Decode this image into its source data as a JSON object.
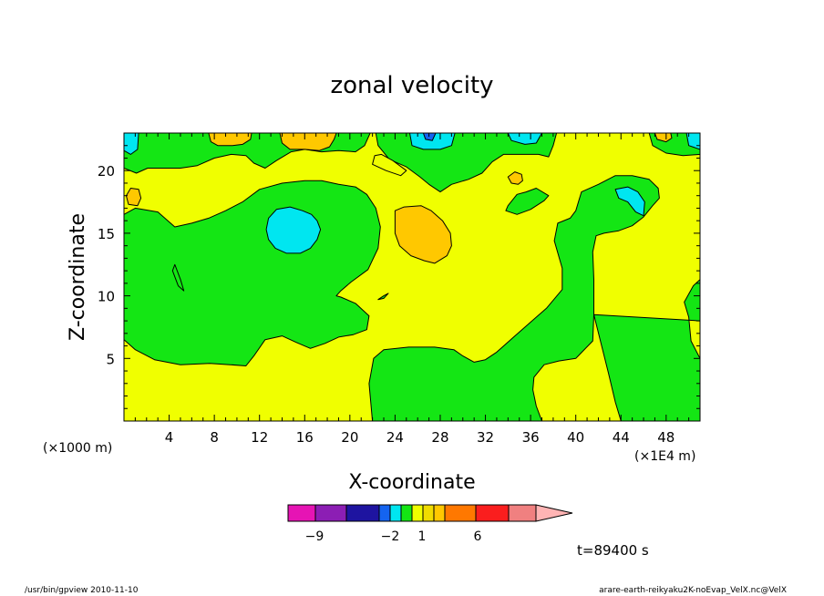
{
  "chart_data": {
    "type": "heatmap",
    "title": "zonal velocity",
    "xlabel": "X-coordinate",
    "ylabel": "Z-coordinate",
    "x_scale_note": "(×1000 m)",
    "x_unit_note": "(×1E4 m)",
    "xlim": [
      0,
      51
    ],
    "ylim": [
      0,
      23
    ],
    "x_ticks": [
      4,
      8,
      12,
      16,
      20,
      24,
      28,
      32,
      36,
      40,
      44,
      48
    ],
    "x_tick_labels": [
      "4",
      "8",
      "12",
      "16",
      "20",
      "24",
      "28",
      "32",
      "36",
      "40",
      "44",
      "48"
    ],
    "y_ticks": [
      5,
      10,
      15,
      20
    ],
    "y_tick_labels": [
      "5",
      "10",
      "15",
      "20"
    ],
    "regions": [
      {
        "level": "green",
        "polygon": [
          [
            0,
            16.5
          ],
          [
            1,
            17
          ],
          [
            3,
            16.7
          ],
          [
            4.5,
            15.5
          ],
          [
            6,
            15.8
          ],
          [
            7.5,
            16.2
          ],
          [
            9,
            16.8
          ],
          [
            10.5,
            17.5
          ],
          [
            12,
            18.5
          ],
          [
            14,
            19
          ],
          [
            16,
            19.2
          ],
          [
            17.5,
            19.2
          ],
          [
            19,
            18.9
          ],
          [
            20.5,
            18.7
          ],
          [
            21.5,
            18.1
          ],
          [
            22.3,
            17
          ],
          [
            22.7,
            15.5
          ],
          [
            22.5,
            13.8
          ],
          [
            21.6,
            12.1
          ],
          [
            20.1,
            11.1
          ],
          [
            19.2,
            10.4
          ],
          [
            18.8,
            10
          ],
          [
            19.2,
            9.9
          ],
          [
            20.5,
            9.4
          ],
          [
            21.7,
            8.4
          ],
          [
            21.5,
            7.3
          ],
          [
            20.3,
            6.9
          ],
          [
            19,
            6.7
          ],
          [
            17.8,
            6.2
          ],
          [
            16.5,
            5.8
          ],
          [
            15.2,
            6.3
          ],
          [
            14,
            6.8
          ],
          [
            12.5,
            6.5
          ],
          [
            11.5,
            5.2
          ],
          [
            10.8,
            4.4
          ],
          [
            9.4,
            4.5
          ],
          [
            7.6,
            4.6
          ],
          [
            5,
            4.5
          ],
          [
            2.7,
            4.9
          ],
          [
            1,
            5.7
          ],
          [
            0,
            6.5
          ]
        ]
      },
      {
        "level": "green",
        "polygon": [
          [
            22,
            0
          ],
          [
            21.7,
            3
          ],
          [
            22.1,
            5
          ],
          [
            23,
            5.7
          ],
          [
            25.2,
            5.9
          ],
          [
            27.5,
            5.9
          ],
          [
            29.2,
            5.7
          ],
          [
            30,
            5.2
          ],
          [
            31,
            4.7
          ],
          [
            32,
            4.9
          ],
          [
            33,
            5.5
          ],
          [
            34.5,
            6.7
          ],
          [
            36,
            7.9
          ],
          [
            37.4,
            9
          ],
          [
            38.8,
            10.5
          ],
          [
            38.8,
            12.2
          ],
          [
            38.1,
            14.4
          ],
          [
            38.4,
            15.8
          ],
          [
            39.5,
            16.2
          ],
          [
            40,
            16.8
          ],
          [
            40.5,
            18.3
          ],
          [
            42,
            18.9
          ],
          [
            43.5,
            19.6
          ],
          [
            45,
            19.6
          ],
          [
            46.5,
            19.3
          ],
          [
            47.3,
            18.6
          ],
          [
            47.4,
            17.8
          ],
          [
            46.8,
            17.2
          ],
          [
            46,
            16.3
          ],
          [
            45,
            15.6
          ],
          [
            43.8,
            15.2
          ],
          [
            42.5,
            15
          ],
          [
            41.8,
            14.8
          ],
          [
            41.5,
            13.5
          ],
          [
            41.6,
            11.3
          ],
          [
            41.6,
            8.5
          ],
          [
            41.5,
            6.4
          ],
          [
            40,
            5
          ],
          [
            38.5,
            4.8
          ],
          [
            37.2,
            4.5
          ],
          [
            36.3,
            3.5
          ],
          [
            36.2,
            2.5
          ],
          [
            36.5,
            1.2
          ],
          [
            37,
            0
          ]
        ]
      },
      {
        "level": "green",
        "polygon": [
          [
            41.6,
            8.5
          ],
          [
            42.9,
            3.8
          ],
          [
            43.5,
            1.5
          ],
          [
            44,
            0
          ],
          [
            51,
            0
          ],
          [
            51,
            5
          ],
          [
            50.2,
            6.4
          ],
          [
            50,
            8.3
          ],
          [
            49.6,
            9.5
          ],
          [
            50.4,
            10.8
          ],
          [
            51,
            11.3
          ],
          [
            51,
            8
          ]
        ]
      },
      {
        "level": "green",
        "polygon": [
          [
            0,
            23
          ],
          [
            0,
            20.2
          ],
          [
            1.1,
            19.8
          ],
          [
            2.1,
            20.2
          ],
          [
            3.5,
            20.2
          ],
          [
            5,
            20.2
          ],
          [
            6.5,
            20.4
          ],
          [
            8,
            21
          ],
          [
            9.5,
            21.3
          ],
          [
            10.8,
            21.2
          ],
          [
            11.5,
            20.6
          ],
          [
            12.5,
            20.2
          ],
          [
            13.5,
            20.8
          ],
          [
            14.8,
            21.5
          ],
          [
            16,
            21.7
          ],
          [
            17.5,
            21.5
          ],
          [
            19,
            21.6
          ],
          [
            20.5,
            21.5
          ],
          [
            21.3,
            22
          ],
          [
            21.8,
            23
          ]
        ]
      },
      {
        "level": "green",
        "polygon": [
          [
            22.3,
            23
          ],
          [
            22.5,
            22
          ],
          [
            23.5,
            20.9
          ],
          [
            25,
            20.3
          ],
          [
            26.2,
            19.5
          ],
          [
            27,
            18.9
          ],
          [
            28,
            18.3
          ],
          [
            29,
            18.9
          ],
          [
            30.5,
            19.3
          ],
          [
            31.7,
            19.8
          ],
          [
            32.6,
            20.7
          ],
          [
            33.6,
            21.3
          ],
          [
            35,
            21.3
          ],
          [
            36.7,
            21.3
          ],
          [
            37.6,
            21.1
          ],
          [
            38,
            22
          ],
          [
            38.3,
            23
          ]
        ]
      },
      {
        "level": "green",
        "polygon": [
          [
            34,
            17.2
          ],
          [
            33.8,
            16.8
          ],
          [
            34.8,
            16.5
          ],
          [
            36,
            16.9
          ],
          [
            37.2,
            17.6
          ],
          [
            37.6,
            18
          ],
          [
            36.5,
            18.6
          ],
          [
            35.6,
            18.3
          ],
          [
            34.8,
            18.1
          ]
        ]
      },
      {
        "level": "green",
        "polygon": [
          [
            46.5,
            23
          ],
          [
            46.8,
            22
          ],
          [
            48,
            21.4
          ],
          [
            49.5,
            21.2
          ],
          [
            51,
            21.3
          ],
          [
            51,
            23
          ]
        ]
      },
      {
        "level": "yellow",
        "polygon": [
          [
            22,
            20.5
          ],
          [
            23.2,
            20
          ],
          [
            24.5,
            19.6
          ],
          [
            25,
            20
          ],
          [
            23.8,
            20.8
          ],
          [
            22.8,
            21.3
          ],
          [
            22.2,
            21.2
          ]
        ]
      },
      {
        "level": "orange-light",
        "polygon": [
          [
            0.2,
            18
          ],
          [
            0.4,
            17.3
          ],
          [
            1.2,
            17.2
          ],
          [
            1.5,
            17.8
          ],
          [
            1.3,
            18.5
          ],
          [
            0.6,
            18.6
          ]
        ]
      },
      {
        "level": "orange-light",
        "polygon": [
          [
            24,
            16
          ],
          [
            24,
            16.8
          ],
          [
            24.8,
            17.1
          ],
          [
            26.3,
            17.2
          ],
          [
            27.2,
            16.8
          ],
          [
            28.2,
            16
          ],
          [
            28.9,
            15
          ],
          [
            29,
            14
          ],
          [
            28.6,
            13.2
          ],
          [
            27.5,
            12.6
          ],
          [
            26.6,
            12.8
          ],
          [
            25.4,
            13.2
          ],
          [
            24.4,
            14
          ],
          [
            24,
            15
          ]
        ]
      },
      {
        "level": "orange-light",
        "polygon": [
          [
            7.5,
            23
          ],
          [
            7.7,
            22.3
          ],
          [
            8.3,
            22
          ],
          [
            9.6,
            22
          ],
          [
            10.5,
            22.1
          ],
          [
            11.2,
            22.5
          ],
          [
            11.3,
            23
          ]
        ]
      },
      {
        "level": "orange-light",
        "polygon": [
          [
            13.8,
            23
          ],
          [
            14,
            22.2
          ],
          [
            14.7,
            21.7
          ],
          [
            16,
            21.7
          ],
          [
            17.3,
            21.6
          ],
          [
            18.2,
            21.9
          ],
          [
            18.6,
            22.5
          ],
          [
            18.8,
            23
          ]
        ]
      },
      {
        "level": "orange-light",
        "polygon": [
          [
            34,
            19.5
          ],
          [
            34.3,
            19
          ],
          [
            34.9,
            18.9
          ],
          [
            35.3,
            19.2
          ],
          [
            35.2,
            19.7
          ],
          [
            34.6,
            19.9
          ]
        ]
      },
      {
        "level": "orange-light",
        "polygon": [
          [
            47,
            23
          ],
          [
            47.2,
            22.5
          ],
          [
            48,
            22.3
          ],
          [
            48.5,
            22.6
          ],
          [
            48.4,
            23
          ]
        ]
      },
      {
        "level": "cyan",
        "polygon": [
          [
            12.6,
            15.3
          ],
          [
            12.8,
            16.2
          ],
          [
            13.5,
            16.9
          ],
          [
            14.7,
            17.1
          ],
          [
            15.8,
            16.8
          ],
          [
            16.6,
            16.5
          ],
          [
            17.1,
            16
          ],
          [
            17.4,
            15.3
          ],
          [
            17.1,
            14.5
          ],
          [
            16.5,
            13.8
          ],
          [
            15.6,
            13.4
          ],
          [
            14.4,
            13.4
          ],
          [
            13.4,
            13.8
          ],
          [
            12.8,
            14.5
          ]
        ]
      },
      {
        "level": "cyan",
        "polygon": [
          [
            0,
            23
          ],
          [
            0,
            21.6
          ],
          [
            0.6,
            21.3
          ],
          [
            1.2,
            21.7
          ],
          [
            1.3,
            23
          ]
        ]
      },
      {
        "level": "cyan",
        "polygon": [
          [
            25.3,
            23
          ],
          [
            25.5,
            22
          ],
          [
            26.5,
            21.7
          ],
          [
            28,
            21.7
          ],
          [
            29,
            22
          ],
          [
            29.3,
            23
          ]
        ]
      },
      {
        "level": "cyan",
        "polygon": [
          [
            34,
            23
          ],
          [
            34.3,
            22.4
          ],
          [
            35.5,
            22.1
          ],
          [
            36.5,
            22.2
          ],
          [
            37,
            23
          ]
        ]
      },
      {
        "level": "cyan",
        "polygon": [
          [
            43.5,
            18.5
          ],
          [
            43.8,
            17.8
          ],
          [
            44.6,
            17.5
          ],
          [
            45.3,
            16.7
          ],
          [
            46,
            16.4
          ],
          [
            46.1,
            17.5
          ],
          [
            45.5,
            18.3
          ],
          [
            44.6,
            18.7
          ]
        ]
      },
      {
        "level": "cyan",
        "polygon": [
          [
            49.8,
            23
          ],
          [
            50,
            22
          ],
          [
            51,
            21.7
          ],
          [
            51,
            23
          ]
        ]
      },
      {
        "level": "blue",
        "polygon": [
          [
            26.5,
            23
          ],
          [
            26.7,
            22.5
          ],
          [
            27.3,
            22.4
          ],
          [
            27.6,
            23
          ]
        ]
      },
      {
        "level": "green",
        "polygon": [
          [
            4.3,
            12
          ],
          [
            4.5,
            12.5
          ],
          [
            5,
            11.3
          ],
          [
            5.3,
            10.4
          ],
          [
            4.8,
            10.8
          ]
        ]
      },
      {
        "level": "green",
        "polygon": [
          [
            22.5,
            9.7
          ],
          [
            23,
            10
          ],
          [
            23.4,
            10.2
          ],
          [
            23,
            9.8
          ]
        ]
      }
    ],
    "colorbar": {
      "levels": [
        "magenta",
        "purple",
        "darkblue",
        "blue",
        "cyan",
        "green",
        "yellow",
        "gold",
        "orange-light",
        "orange",
        "red",
        "pink"
      ],
      "labels": [
        "−9",
        "−2",
        "1",
        "6"
      ]
    },
    "colors": {
      "magenta": "#e614b4",
      "purple": "#8c1eb4",
      "darkblue": "#1e14a0",
      "blue": "#1464f0",
      "cyan": "#00e6f0",
      "green": "#14e614",
      "yellow": "#f0ff00",
      "gold": "#f0dc00",
      "orange-light": "#ffc800",
      "orange": "#ff7800",
      "red": "#fa1e1e",
      "pink": "#f08080",
      "extend": "#ffb4b4"
    }
  },
  "time_label": "t=89400 s",
  "footer": {
    "left": "/usr/bin/gpview  2010-11-10",
    "right": "arare-earth-reikyaku2K-noEvap_VelX.nc@VelX"
  }
}
